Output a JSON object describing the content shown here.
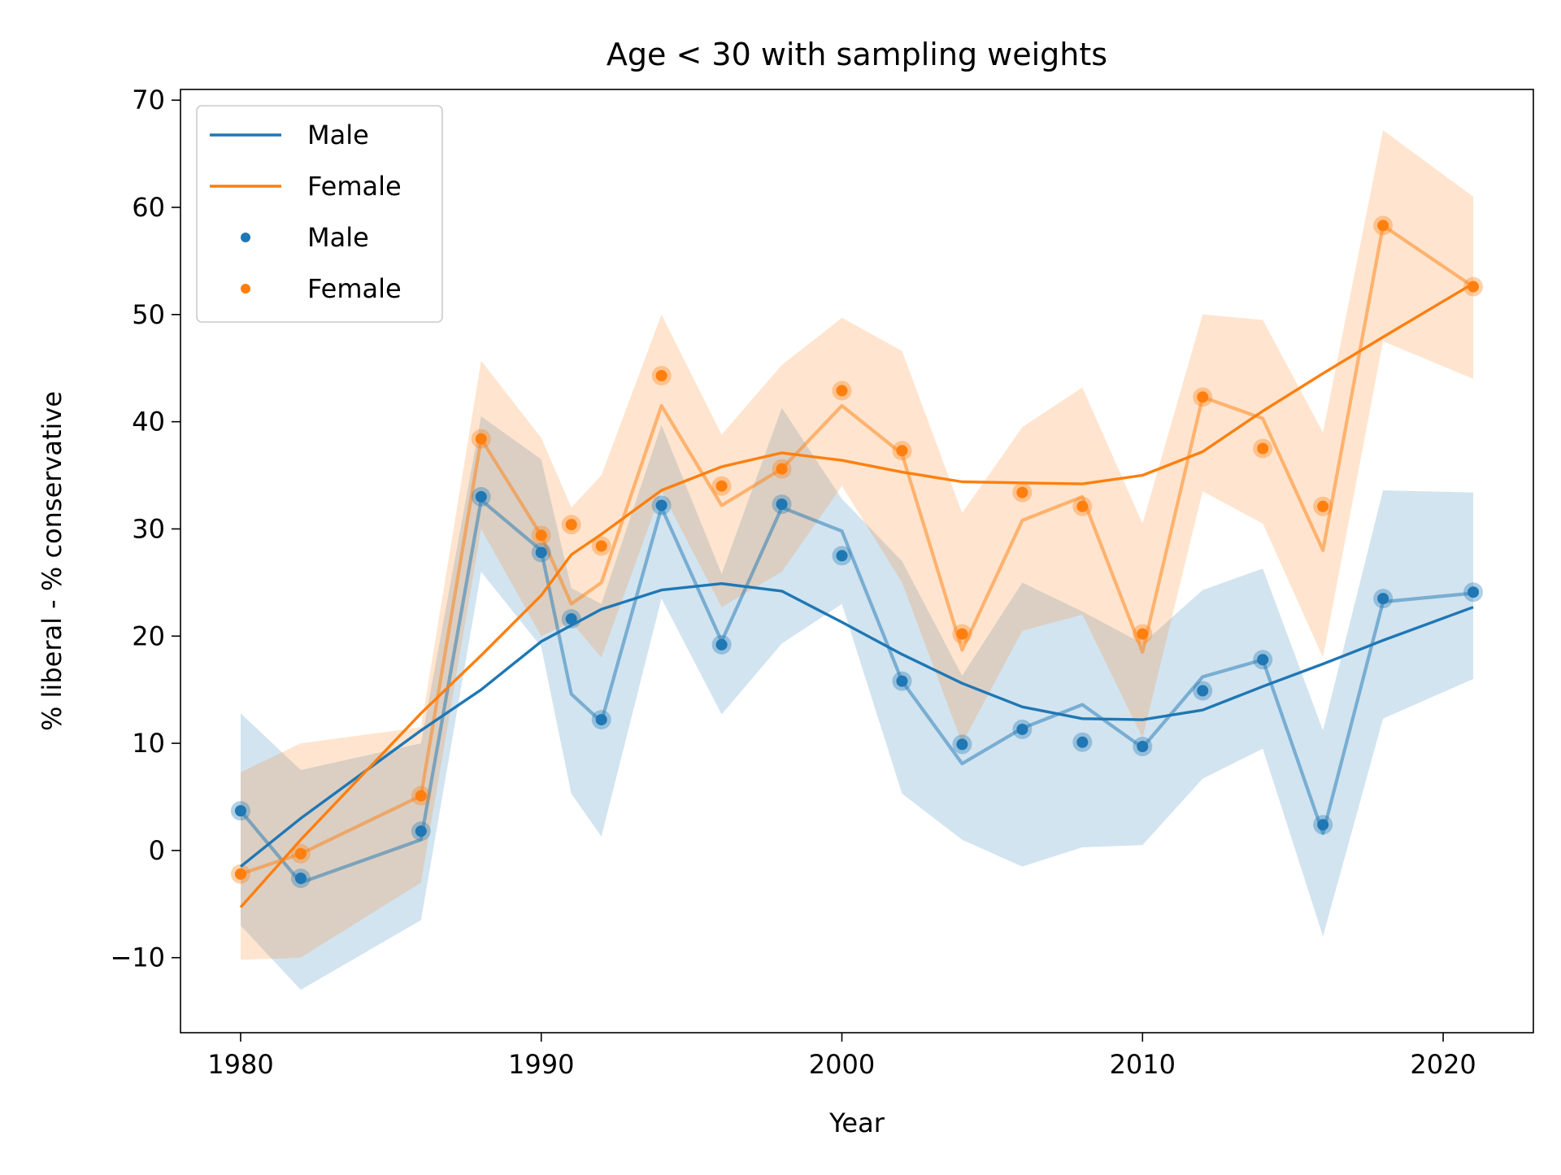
{
  "chart_data": {
    "type": "line",
    "title": "Age < 30 with sampling weights",
    "xlabel": "Year",
    "ylabel": "% liberal - % conservative",
    "xlim": [
      1978,
      2023
    ],
    "ylim": [
      -17,
      71
    ],
    "x_ticks": [
      1980,
      1990,
      2000,
      2010,
      2020
    ],
    "y_ticks": [
      -10,
      0,
      10,
      20,
      30,
      40,
      50,
      60,
      70
    ],
    "y_tick_labels": [
      "−10",
      "0",
      "10",
      "20",
      "30",
      "40",
      "50",
      "60",
      "70"
    ],
    "grid": false,
    "legend": {
      "position": "top-left",
      "entries": [
        {
          "label": "Male",
          "kind": "line",
          "series": "male"
        },
        {
          "label": "Female",
          "kind": "line",
          "series": "female"
        },
        {
          "label": "Male",
          "kind": "marker",
          "series": "male"
        },
        {
          "label": "Female",
          "kind": "marker",
          "series": "female"
        }
      ]
    },
    "colors": {
      "male": "#1f77b4",
      "female": "#ff7f0e"
    },
    "series": [
      {
        "key": "male",
        "name": "Male",
        "points": {
          "x": [
            1980,
            1982,
            1986,
            1988,
            1990,
            1991,
            1992,
            1994,
            1996,
            1998,
            2000,
            2002,
            2004,
            2006,
            2008,
            2010,
            2012,
            2014,
            2016,
            2018,
            2021
          ],
          "y": [
            3.7,
            -2.6,
            1.8,
            33.0,
            27.8,
            21.6,
            12.2,
            32.2,
            19.2,
            32.3,
            27.5,
            15.8,
            9.9,
            11.3,
            10.1,
            9.7,
            14.9,
            17.8,
            2.4,
            23.5,
            24.1
          ]
        },
        "interp": {
          "x": [
            1980,
            1982,
            1986,
            1988,
            1990,
            1991,
            1992,
            1994,
            1996,
            1998,
            2000,
            2002,
            2004,
            2006,
            2008,
            2010,
            2012,
            2014,
            2016,
            2018,
            2021
          ],
          "y": [
            3.7,
            -3.0,
            1.0,
            32.7,
            28.0,
            14.6,
            12.0,
            32.0,
            19.5,
            32.0,
            29.8,
            15.8,
            8.1,
            11.4,
            13.6,
            9.6,
            16.2,
            17.8,
            1.6,
            23.2,
            24.0
          ]
        },
        "ci": {
          "x": [
            1980,
            1982,
            1986,
            1988,
            1990,
            1991,
            1992,
            1994,
            1996,
            1998,
            2000,
            2002,
            2004,
            2006,
            2008,
            2010,
            2012,
            2014,
            2016,
            2018,
            2021
          ],
          "lower": [
            -7.0,
            -13.0,
            -6.5,
            26.0,
            19.0,
            5.3,
            1.3,
            23.5,
            12.7,
            19.3,
            23.0,
            5.3,
            1.0,
            -1.5,
            0.3,
            0.5,
            6.7,
            9.5,
            -8.0,
            12.3,
            16.0
          ],
          "upper": [
            12.8,
            7.5,
            10.0,
            40.5,
            36.5,
            24.5,
            23.0,
            39.7,
            25.8,
            41.3,
            32.8,
            27.0,
            16.3,
            25.0,
            22.3,
            19.3,
            24.3,
            26.3,
            11.2,
            33.6,
            33.4
          ]
        },
        "smooth": {
          "x": [
            1980,
            1982,
            1986,
            1988,
            1990,
            1992,
            1994,
            1996,
            1998,
            2000,
            2002,
            2004,
            2006,
            2008,
            2010,
            2012,
            2014,
            2016,
            2018,
            2021
          ],
          "y": [
            -1.5,
            3.0,
            11.2,
            15.0,
            19.5,
            22.5,
            24.3,
            24.9,
            24.2,
            21.3,
            18.3,
            15.6,
            13.4,
            12.3,
            12.2,
            13.1,
            15.3,
            17.4,
            19.6,
            22.7
          ]
        }
      },
      {
        "key": "female",
        "name": "Female",
        "points": {
          "x": [
            1980,
            1982,
            1986,
            1988,
            1990,
            1991,
            1992,
            1994,
            1996,
            1998,
            2000,
            2002,
            2004,
            2006,
            2008,
            2010,
            2012,
            2014,
            2016,
            2018,
            2021
          ],
          "y": [
            -2.2,
            -0.3,
            5.1,
            38.4,
            29.4,
            30.4,
            28.4,
            44.3,
            34.0,
            35.6,
            42.9,
            37.3,
            20.2,
            33.4,
            32.1,
            20.2,
            42.3,
            37.5,
            32.1,
            58.3,
            52.6
          ]
        },
        "interp": {
          "x": [
            1980,
            1982,
            1986,
            1988,
            1990,
            1991,
            1992,
            1994,
            1996,
            1998,
            2000,
            2002,
            2004,
            2006,
            2008,
            2010,
            2012,
            2014,
            2016,
            2018,
            2021
          ],
          "y": [
            -2.2,
            -0.3,
            5.1,
            38.4,
            29.4,
            23.0,
            25.0,
            41.5,
            32.2,
            35.6,
            41.5,
            37.0,
            18.7,
            30.8,
            33.0,
            18.5,
            42.3,
            40.3,
            28.0,
            58.3,
            52.6
          ]
        },
        "ci": {
          "x": [
            1980,
            1982,
            1986,
            1988,
            1990,
            1991,
            1992,
            1994,
            1996,
            1998,
            2000,
            2002,
            2004,
            2006,
            2008,
            2010,
            2012,
            2014,
            2016,
            2018,
            2021
          ],
          "lower": [
            -10.2,
            -10.0,
            -3.0,
            30.0,
            20.0,
            21.3,
            18.0,
            33.5,
            22.7,
            26.0,
            34.0,
            25.0,
            10.0,
            20.5,
            22.0,
            10.5,
            33.5,
            30.5,
            18.0,
            47.5,
            44.0
          ],
          "upper": [
            7.3,
            10.0,
            11.5,
            45.7,
            38.5,
            32.0,
            35.0,
            50.0,
            38.8,
            45.3,
            49.7,
            46.6,
            31.5,
            39.5,
            43.2,
            30.5,
            50.0,
            49.5,
            39.0,
            67.2,
            61.0
          ]
        },
        "smooth": {
          "x": [
            1980,
            1982,
            1986,
            1988,
            1990,
            1991,
            1992,
            1994,
            1996,
            1998,
            2000,
            2002,
            2004,
            2006,
            2008,
            2010,
            2012,
            2014,
            2016,
            2018,
            2021
          ],
          "y": [
            -5.3,
            1.0,
            12.8,
            18.2,
            23.8,
            27.6,
            29.5,
            33.6,
            35.8,
            37.1,
            36.4,
            35.3,
            34.4,
            34.3,
            34.2,
            35.0,
            37.2,
            41.0,
            44.5,
            47.9,
            52.9
          ]
        }
      }
    ]
  }
}
